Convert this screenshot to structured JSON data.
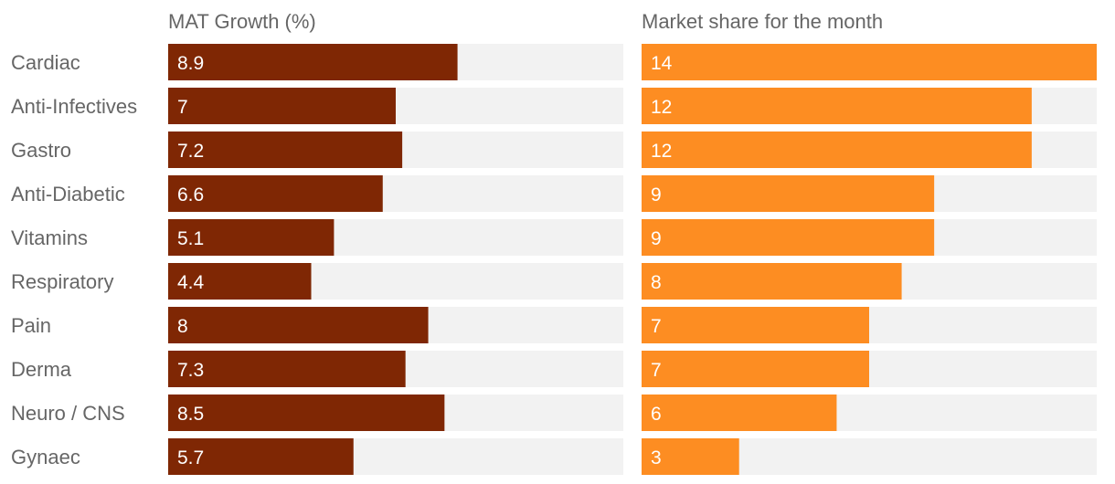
{
  "chart_data": {
    "type": "bar",
    "orientation": "horizontal",
    "categories": [
      "Cardiac",
      "Anti-Infectives",
      "Gastro",
      "Anti-Diabetic",
      "Vitamins",
      "Respiratory",
      "Pain",
      "Derma",
      "Neuro / CNS",
      "Gynaec"
    ],
    "series": [
      {
        "name": "MAT Growth (%)",
        "color": "#7f2704",
        "values": [
          8.9,
          7,
          7.2,
          6.6,
          5.1,
          4.4,
          8,
          7.3,
          8.5,
          5.7
        ],
        "xlim": [
          0,
          14
        ]
      },
      {
        "name": "Market share for the month",
        "color": "#fd8d22",
        "values": [
          14,
          12,
          12,
          9,
          9,
          8,
          7,
          7,
          6,
          3
        ],
        "xlim": [
          0,
          14
        ]
      }
    ],
    "track_color": "#f2f2f2",
    "grid": false,
    "legend": "none"
  }
}
